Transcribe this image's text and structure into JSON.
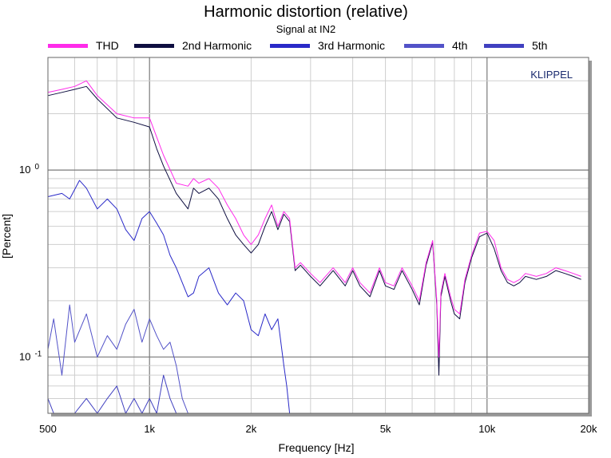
{
  "chart_data": {
    "type": "line",
    "title": "Harmonic distortion (relative)",
    "subtitle": "Signal at IN2",
    "xlabel": "Frequency [Hz]",
    "ylabel": "[Percent]",
    "brand": "KLIPPEL",
    "x_scale": "log",
    "y_scale": "log",
    "xlim": [
      500,
      20000
    ],
    "ylim": [
      0.05,
      4.0
    ],
    "grid": true,
    "legend": "top",
    "x_ticks": [
      {
        "value": 500,
        "label": "500"
      },
      {
        "value": 1000,
        "label": "1k"
      },
      {
        "value": 2000,
        "label": "2k"
      },
      {
        "value": 5000,
        "label": "5k"
      },
      {
        "value": 10000,
        "label": "10k"
      },
      {
        "value": 20000,
        "label": "20k"
      }
    ],
    "y_ticks": [
      {
        "value": 1,
        "base": "10",
        "exp": "0"
      },
      {
        "value": 0.1,
        "base": "10",
        "exp": "-1"
      }
    ],
    "series": [
      {
        "name": "THD",
        "color": "#ff2bea",
        "x": [
          500,
          550,
          600,
          650,
          700,
          800,
          900,
          1000,
          1050,
          1100,
          1200,
          1300,
          1350,
          1400,
          1500,
          1600,
          1700,
          1800,
          1900,
          2000,
          2100,
          2200,
          2300,
          2400,
          2500,
          2600,
          2700,
          2800,
          3000,
          3200,
          3500,
          3800,
          4000,
          4200,
          4500,
          4800,
          5000,
          5300,
          5600,
          6000,
          6300,
          6600,
          6900,
          7100,
          7200,
          7300,
          7500,
          7800,
          8000,
          8300,
          8600,
          9000,
          9500,
          10000,
          10500,
          11000,
          11500,
          12000,
          12500,
          13000,
          14000,
          15000,
          16000,
          17000,
          18000,
          19000
        ],
        "y": [
          2.6,
          2.7,
          2.8,
          3.0,
          2.5,
          2.0,
          1.9,
          1.9,
          1.5,
          1.2,
          0.85,
          0.82,
          0.9,
          0.85,
          0.9,
          0.8,
          0.65,
          0.55,
          0.45,
          0.4,
          0.45,
          0.55,
          0.65,
          0.5,
          0.6,
          0.55,
          0.3,
          0.32,
          0.28,
          0.25,
          0.3,
          0.25,
          0.3,
          0.25,
          0.22,
          0.3,
          0.25,
          0.24,
          0.3,
          0.24,
          0.2,
          0.32,
          0.42,
          0.2,
          0.1,
          0.22,
          0.28,
          0.21,
          0.18,
          0.17,
          0.26,
          0.35,
          0.46,
          0.47,
          0.42,
          0.3,
          0.26,
          0.25,
          0.26,
          0.28,
          0.27,
          0.28,
          0.3,
          0.29,
          0.28,
          0.27
        ]
      },
      {
        "name": "2nd Harmonic",
        "color": "#0e0e40",
        "x": [
          500,
          550,
          600,
          650,
          700,
          800,
          900,
          1000,
          1050,
          1100,
          1200,
          1300,
          1350,
          1400,
          1500,
          1600,
          1700,
          1800,
          1900,
          2000,
          2100,
          2200,
          2300,
          2400,
          2500,
          2600,
          2700,
          2800,
          3000,
          3200,
          3500,
          3800,
          4000,
          4200,
          4500,
          4800,
          5000,
          5300,
          5600,
          6000,
          6300,
          6600,
          6900,
          7100,
          7200,
          7300,
          7500,
          7800,
          8000,
          8300,
          8600,
          9000,
          9500,
          10000,
          10500,
          11000,
          11500,
          12000,
          12500,
          13000,
          14000,
          15000,
          16000,
          17000,
          18000,
          19000
        ],
        "y": [
          2.5,
          2.6,
          2.7,
          2.8,
          2.4,
          1.9,
          1.8,
          1.7,
          1.3,
          1.05,
          0.75,
          0.62,
          0.8,
          0.75,
          0.8,
          0.7,
          0.55,
          0.45,
          0.4,
          0.36,
          0.4,
          0.5,
          0.6,
          0.48,
          0.58,
          0.53,
          0.29,
          0.31,
          0.27,
          0.24,
          0.29,
          0.24,
          0.29,
          0.24,
          0.21,
          0.29,
          0.24,
          0.23,
          0.29,
          0.23,
          0.19,
          0.31,
          0.41,
          0.19,
          0.08,
          0.21,
          0.27,
          0.2,
          0.17,
          0.16,
          0.25,
          0.34,
          0.44,
          0.46,
          0.38,
          0.29,
          0.25,
          0.24,
          0.25,
          0.27,
          0.26,
          0.27,
          0.29,
          0.28,
          0.27,
          0.26
        ]
      },
      {
        "name": "3rd Harmonic",
        "color": "#2929c8",
        "x": [
          500,
          550,
          580,
          620,
          650,
          700,
          750,
          800,
          850,
          900,
          950,
          1000,
          1050,
          1100,
          1150,
          1200,
          1250,
          1300,
          1350,
          1400,
          1500,
          1600,
          1700,
          1800,
          1900,
          2000,
          2100,
          2200,
          2300,
          2400,
          2500,
          2550,
          2600
        ],
        "y": [
          0.72,
          0.75,
          0.7,
          0.88,
          0.8,
          0.62,
          0.7,
          0.62,
          0.48,
          0.42,
          0.55,
          0.6,
          0.52,
          0.45,
          0.35,
          0.3,
          0.25,
          0.21,
          0.22,
          0.27,
          0.3,
          0.22,
          0.19,
          0.22,
          0.2,
          0.14,
          0.13,
          0.17,
          0.14,
          0.16,
          0.09,
          0.07,
          0.05
        ]
      },
      {
        "name": "4th",
        "color": "#5252c8",
        "x": [
          500,
          520,
          550,
          580,
          600,
          650,
          700,
          750,
          800,
          850,
          900,
          950,
          1000,
          1050,
          1100,
          1150,
          1200,
          1250,
          1300
        ],
        "y": [
          0.11,
          0.16,
          0.08,
          0.19,
          0.12,
          0.17,
          0.1,
          0.13,
          0.11,
          0.15,
          0.18,
          0.12,
          0.16,
          0.13,
          0.11,
          0.12,
          0.09,
          0.06,
          0.05
        ]
      },
      {
        "name": "5th",
        "color": "#4040c0",
        "x": [
          500,
          520,
          550,
          600,
          650,
          700,
          750,
          800,
          850,
          900,
          950,
          1000,
          1050,
          1100,
          1150,
          1200
        ],
        "y": [
          0.06,
          0.05,
          0.05,
          0.05,
          0.06,
          0.05,
          0.06,
          0.07,
          0.05,
          0.06,
          0.05,
          0.06,
          0.05,
          0.08,
          0.06,
          0.05
        ]
      }
    ]
  }
}
